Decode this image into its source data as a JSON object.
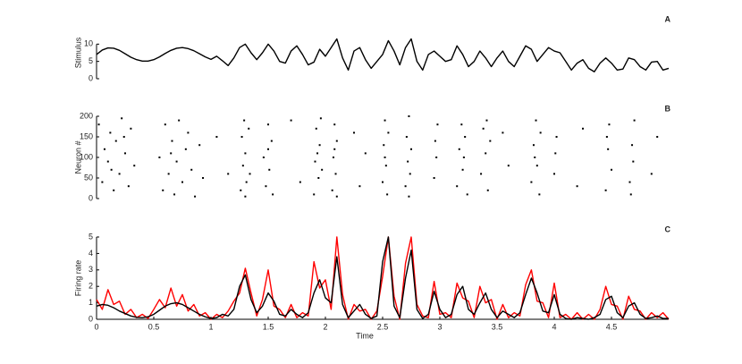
{
  "chart_data": [
    {
      "type": "line",
      "panel_label": "A",
      "y_label": "Stimulus",
      "x": [
        0,
        0.05,
        0.1,
        0.15,
        0.2,
        0.25,
        0.3,
        0.35,
        0.4,
        0.45,
        0.5,
        0.55,
        0.6,
        0.65,
        0.7,
        0.75,
        0.8,
        0.85,
        0.9,
        0.95,
        1,
        1.05,
        1.1,
        1.15,
        1.2,
        1.25,
        1.3,
        1.35,
        1.4,
        1.45,
        1.5,
        1.55,
        1.6,
        1.65,
        1.7,
        1.75,
        1.8,
        1.85,
        1.9,
        1.95,
        2,
        2.05,
        2.1,
        2.15,
        2.2,
        2.25,
        2.3,
        2.35,
        2.4,
        2.45,
        2.5,
        2.55,
        2.6,
        2.65,
        2.7,
        2.75,
        2.8,
        2.85,
        2.9,
        2.95,
        3,
        3.05,
        3.1,
        3.15,
        3.2,
        3.25,
        3.3,
        3.35,
        3.4,
        3.45,
        3.5,
        3.55,
        3.6,
        3.65,
        3.7,
        3.75,
        3.8,
        3.85,
        3.9,
        3.95,
        4,
        4.05,
        4.1,
        4.15,
        4.2,
        4.25,
        4.3,
        4.35,
        4.4,
        4.45,
        4.5,
        4.55,
        4.6,
        4.65,
        4.7,
        4.75,
        4.8,
        4.85,
        4.9,
        4.95,
        5
      ],
      "series": [
        {
          "color": "#000000",
          "values": [
            7,
            8.3,
            8.9,
            8.8,
            8.2,
            7.2,
            6.2,
            5.5,
            5.1,
            5.1,
            5.5,
            6.3,
            7.3,
            8.2,
            8.8,
            9,
            8.7,
            8.1,
            7.2,
            6.3,
            5.6,
            6.5,
            5.2,
            3.8,
            6,
            9,
            10,
            7.5,
            5.5,
            7.5,
            10,
            8,
            5,
            4.5,
            8,
            9.5,
            7,
            4,
            4.8,
            8.5,
            6.5,
            9,
            11.5,
            6,
            2.5,
            8,
            9,
            5.5,
            3,
            5,
            7,
            11,
            8,
            4,
            9,
            11.5,
            5,
            2.5,
            7,
            8,
            6.5,
            5,
            5.5,
            9.5,
            7,
            3.5,
            5,
            8,
            6,
            3.5,
            6,
            8,
            5,
            3.5,
            6.5,
            9.5,
            8.5,
            5,
            7,
            9,
            8,
            7.5,
            5,
            2.5,
            4.5,
            5.5,
            3,
            2,
            4.5,
            6,
            4.5,
            2.5,
            2.8,
            6,
            5.5,
            3.5,
            2.5,
            4.8,
            5,
            2.5,
            3
          ]
        }
      ],
      "xlim": [
        0,
        5
      ],
      "ylim": [
        0,
        15
      ],
      "yticks": [
        0,
        5,
        10
      ]
    },
    {
      "type": "scatter",
      "panel_label": "B",
      "y_label": "Neuron #",
      "color": "#000000",
      "x": [
        0.02,
        0.05,
        0.07,
        0.1,
        0.12,
        0.15,
        0.17,
        0.2,
        0.22,
        0.25,
        0.28,
        0.3,
        0.33,
        0.13,
        0.24,
        0.55,
        0.58,
        0.6,
        0.63,
        0.66,
        0.68,
        0.7,
        0.72,
        0.75,
        0.78,
        0.8,
        0.83,
        0.86,
        0.9,
        0.93,
        0.65,
        1.26,
        1.27,
        1.28,
        1.29,
        1.3,
        1.31,
        1.33,
        1.34,
        1.3,
        1.46,
        1.48,
        1.5,
        1.51,
        1.53,
        1.54,
        1.5,
        1.05,
        1.15,
        1.7,
        1.78,
        1.9,
        1.91,
        1.92,
        1.94,
        1.95,
        1.96,
        1.97,
        1.93,
        2.06,
        2.07,
        2.08,
        2.09,
        2.1,
        2.1,
        2.08,
        2.25,
        2.3,
        2.35,
        2.5,
        2.51,
        2.52,
        2.53,
        2.54,
        2.55,
        2.52,
        2.7,
        2.71,
        2.72,
        2.73,
        2.74,
        2.75,
        2.73,
        2.95,
        2.96,
        2.97,
        2.98,
        3.15,
        3.17,
        3.19,
        3.2,
        3.22,
        3.24,
        3.21,
        3.36,
        3.38,
        3.4,
        3.42,
        3.44,
        3.41,
        3.6,
        3.55,
        3.8,
        3.82,
        3.84,
        3.85,
        3.87,
        3.88,
        3.83,
        4,
        4.02,
        4.01,
        4.2,
        4.25,
        4.45,
        4.47,
        4.48,
        4.5,
        4.46,
        4.66,
        4.68,
        4.7,
        4.69,
        4.67,
        4.85,
        4.9
      ],
      "y": [
        180,
        40,
        120,
        90,
        160,
        20,
        140,
        60,
        195,
        110,
        30,
        170,
        80,
        70,
        150,
        100,
        20,
        180,
        60,
        140,
        10,
        90,
        190,
        40,
        120,
        160,
        70,
        5,
        130,
        50,
        110,
        20,
        150,
        80,
        190,
        110,
        40,
        170,
        60,
        5,
        100,
        30,
        180,
        70,
        140,
        10,
        120,
        150,
        60,
        190,
        40,
        10,
        90,
        170,
        50,
        130,
        195,
        70,
        110,
        20,
        100,
        180,
        60,
        140,
        5,
        120,
        160,
        30,
        110,
        40,
        130,
        190,
        80,
        10,
        160,
        100,
        30,
        150,
        90,
        200,
        60,
        120,
        5,
        50,
        140,
        100,
        180,
        30,
        120,
        180,
        70,
        150,
        10,
        100,
        60,
        170,
        110,
        20,
        140,
        190,
        80,
        160,
        40,
        130,
        190,
        80,
        10,
        160,
        100,
        60,
        150,
        110,
        30,
        170,
        20,
        120,
        180,
        70,
        150,
        40,
        130,
        190,
        90,
        10,
        60,
        150
      ],
      "xlim": [
        0,
        5
      ],
      "ylim": [
        0,
        200
      ],
      "yticks": [
        0,
        50,
        100,
        150,
        200
      ]
    },
    {
      "type": "line",
      "panel_label": "C",
      "y_label": "Firing rate",
      "x_label": "Time",
      "x": [
        0,
        0.05,
        0.1,
        0.15,
        0.2,
        0.25,
        0.3,
        0.35,
        0.4,
        0.45,
        0.5,
        0.55,
        0.6,
        0.65,
        0.7,
        0.75,
        0.8,
        0.85,
        0.9,
        0.95,
        1,
        1.05,
        1.1,
        1.15,
        1.2,
        1.25,
        1.3,
        1.35,
        1.4,
        1.45,
        1.5,
        1.55,
        1.6,
        1.65,
        1.7,
        1.75,
        1.8,
        1.85,
        1.9,
        1.95,
        2,
        2.05,
        2.1,
        2.15,
        2.2,
        2.25,
        2.3,
        2.35,
        2.4,
        2.45,
        2.5,
        2.55,
        2.6,
        2.65,
        2.7,
        2.75,
        2.8,
        2.85,
        2.9,
        2.95,
        3,
        3.05,
        3.1,
        3.15,
        3.2,
        3.25,
        3.3,
        3.35,
        3.4,
        3.45,
        3.5,
        3.55,
        3.6,
        3.65,
        3.7,
        3.75,
        3.8,
        3.85,
        3.9,
        3.95,
        4,
        4.05,
        4.1,
        4.15,
        4.2,
        4.25,
        4.3,
        4.35,
        4.4,
        4.45,
        4.5,
        4.55,
        4.6,
        4.65,
        4.7,
        4.75,
        4.8,
        4.85,
        4.9,
        4.95,
        5
      ],
      "series": [
        {
          "color": "#ff0000",
          "values": [
            1.2,
            0.6,
            1.8,
            0.9,
            1.1,
            0.3,
            0.6,
            0.1,
            0.3,
            0.05,
            0.6,
            1.2,
            0.7,
            1.9,
            0.8,
            1.5,
            0.5,
            0.9,
            0.2,
            0.4,
            0,
            0.3,
            0.1,
            0.5,
            1.1,
            1.6,
            3.1,
            1.6,
            0.2,
            1.2,
            3,
            0.8,
            0.6,
            0.1,
            0.9,
            0.1,
            0.4,
            0.2,
            3.5,
            1.9,
            2.4,
            0.6,
            5,
            1.5,
            0,
            0.9,
            0.5,
            0.6,
            0,
            0.5,
            2.6,
            5,
            1.4,
            0,
            3.4,
            5,
            0.9,
            0.2,
            0.1,
            2.3,
            0.3,
            0.4,
            0.1,
            2.2,
            1.3,
            1.1,
            0.1,
            2,
            1,
            1.2,
            0,
            0.9,
            0.1,
            0.4,
            0.2,
            2.1,
            3,
            1.1,
            1,
            0.1,
            2.2,
            0.1,
            0.3,
            0,
            0.4,
            0,
            0.3,
            0,
            0.6,
            2,
            0.9,
            0.8,
            0,
            1.4,
            0.6,
            0.5,
            0,
            0.4,
            0.1,
            0.4,
            0
          ]
        },
        {
          "color": "#000000",
          "values": [
            0.8,
            0.9,
            0.85,
            0.7,
            0.5,
            0.35,
            0.2,
            0.12,
            0.1,
            0.15,
            0.3,
            0.55,
            0.8,
            0.95,
            1,
            0.9,
            0.7,
            0.5,
            0.3,
            0.15,
            0.05,
            0.1,
            0.3,
            0.2,
            0.6,
            2,
            2.7,
            1.2,
            0.4,
            0.8,
            1.6,
            1.1,
            0.3,
            0.2,
            0.6,
            0.3,
            0.1,
            0.4,
            1.6,
            2.4,
            1.3,
            1,
            3.8,
            0.9,
            0.1,
            0.5,
            0.9,
            0.3,
            0.05,
            0.2,
            3.5,
            5,
            0.8,
            0.1,
            2.5,
            4.2,
            0.6,
            0.05,
            0.3,
            1.7,
            0.6,
            0.1,
            0.3,
            1.5,
            2,
            0.6,
            0.3,
            1,
            1.6,
            0.6,
            0.1,
            0.5,
            0.3,
            0.1,
            0.4,
            1.5,
            2.5,
            1.6,
            0.5,
            0.4,
            1.5,
            0.3,
            0.05,
            0,
            0.1,
            0.05,
            0,
            0.1,
            0.3,
            1.2,
            1.4,
            0.4,
            0.1,
            0.8,
            1,
            0.3,
            0.05,
            0.1,
            0.2,
            0.05,
            0.05
          ]
        }
      ],
      "xlim": [
        0,
        5
      ],
      "ylim": [
        0,
        5
      ],
      "xticks": [
        0,
        0.5,
        1,
        1.5,
        2,
        2.5,
        3,
        3.5,
        4,
        4.5
      ],
      "yticks": [
        0,
        1,
        2,
        3,
        4,
        5
      ]
    }
  ]
}
